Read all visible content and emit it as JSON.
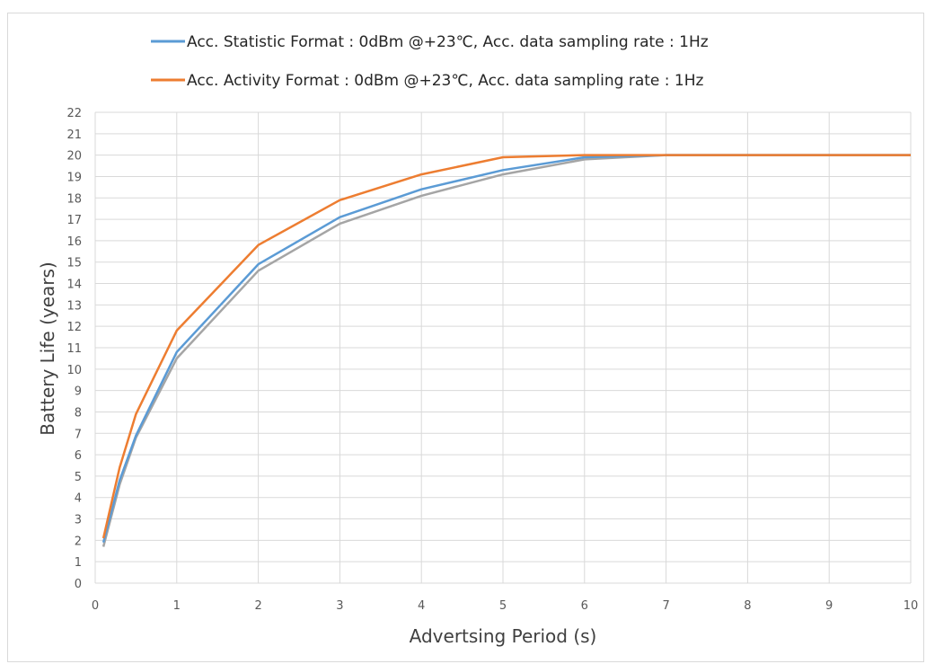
{
  "chart_data": {
    "type": "line",
    "title": "",
    "xlabel": "Advertsing Period (s)",
    "ylabel": "Battery Life (years)",
    "xlim": [
      0,
      10
    ],
    "ylim": [
      0,
      22
    ],
    "x_ticks": [
      "0",
      "1",
      "2",
      "3",
      "4",
      "5",
      "6",
      "7",
      "8",
      "9",
      "10"
    ],
    "y_ticks": [
      "0",
      "1",
      "2",
      "3",
      "4",
      "5",
      "6",
      "7",
      "8",
      "9",
      "10",
      "11",
      "12",
      "13",
      "14",
      "15",
      "16",
      "17",
      "18",
      "19",
      "20",
      "21",
      "22"
    ],
    "grid": true,
    "legend_position": "top",
    "series": [
      {
        "name": "Acc. Statistic Format : 0dBm @+23℃, Acc.  data sampling rate  : 1Hz",
        "color": "#5b9bd5",
        "x": [
          0.1,
          0.3,
          0.5,
          1,
          2,
          3,
          4,
          5,
          6,
          7,
          8,
          9,
          10
        ],
        "y": [
          1.9,
          4.8,
          6.9,
          10.8,
          14.9,
          17.1,
          18.4,
          19.3,
          19.9,
          20.0,
          20.0,
          20.0,
          20.0
        ]
      },
      {
        "name": "Acc. Activity Format : 0dBm @+23℃, Acc.  data sampling rate  : 1Hz",
        "color": "#ed7d31",
        "x": [
          0.1,
          0.3,
          0.5,
          1,
          2,
          3,
          4,
          5,
          6,
          7,
          8,
          9,
          10
        ],
        "y": [
          2.1,
          5.4,
          7.9,
          11.8,
          15.8,
          17.9,
          19.1,
          19.9,
          20.0,
          20.0,
          20.0,
          20.0,
          20.0
        ]
      },
      {
        "color": "#a5a5a5",
        "x": [
          0.1,
          0.3,
          0.5,
          1,
          2,
          3,
          4,
          5,
          6,
          7,
          8,
          9,
          10
        ],
        "y": [
          1.7,
          4.6,
          6.8,
          10.5,
          14.6,
          16.8,
          18.1,
          19.1,
          19.8,
          20.0,
          20.0,
          20.0,
          20.0
        ]
      }
    ]
  }
}
